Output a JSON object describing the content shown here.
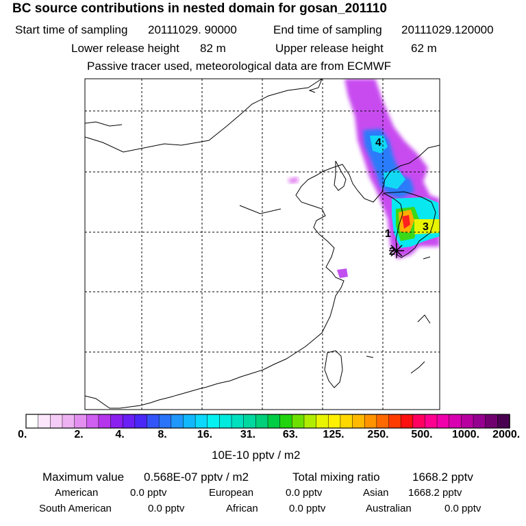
{
  "header": {
    "title": "BC  source contributions in nested domain for gosan_201110",
    "start_label": "Start time of sampling",
    "start_value": "20111029. 90000",
    "end_label": "End time of sampling",
    "end_value": "20111029.120000",
    "lower_label": "Lower release height",
    "lower_value": "82 m",
    "upper_label": "Upper release height",
    "upper_value": "62 m",
    "tracer_note": "Passive tracer used, meteorological data are from ECMWF"
  },
  "chart_data": {
    "type": "heatmap",
    "description_of_field": "Source contribution plume over East Asia",
    "plume_markers": [
      "1",
      "2",
      "3",
      "4"
    ],
    "receptor_marker": "star",
    "colorbar": {
      "ticks": [
        "0.",
        "2.",
        "4.",
        "8.",
        "16.",
        "31.",
        "63.",
        "125.",
        "250.",
        "500.",
        "1000.",
        "2000."
      ],
      "unit": "10E-10 pptv / m2",
      "colors": [
        "#ffffff",
        "#fbe6fb",
        "#f5ccf5",
        "#eeb2f2",
        "#e38ff0",
        "#cf5ff0",
        "#b535ec",
        "#8a1ff0",
        "#6a1ff5",
        "#4a28f8",
        "#3354f9",
        "#2a74fa",
        "#1f97fb",
        "#12b8fc",
        "#0bd8fa",
        "#05f0f0",
        "#00eadd",
        "#00e0bf",
        "#00d8a0",
        "#00d07a",
        "#00cc44",
        "#22d40e",
        "#6ee000",
        "#b0ec00",
        "#e8f400",
        "#fff000",
        "#ffd800",
        "#ffba00",
        "#ff9400",
        "#ff6a00",
        "#ff3c00",
        "#ff1010",
        "#ff0060",
        "#ff0090",
        "#f000aa",
        "#d800b0",
        "#b800a0",
        "#960090",
        "#700070",
        "#4a0050"
      ]
    },
    "stats": {
      "max_label": "Maximum value",
      "max_value": "0.568E-07 pptv / m2",
      "total_label": "Total mixing ratio",
      "total_value": "1668.2 pptv"
    },
    "regions": [
      {
        "name": "American",
        "value": "0.0 pptv"
      },
      {
        "name": "European",
        "value": "0.0 pptv"
      },
      {
        "name": "Asian",
        "value": "1668.2 pptv"
      },
      {
        "name": "South American",
        "value": "0.0 pptv"
      },
      {
        "name": "African",
        "value": "0.0 pptv"
      },
      {
        "name": "Australian",
        "value": "0.0 pptv"
      }
    ]
  }
}
